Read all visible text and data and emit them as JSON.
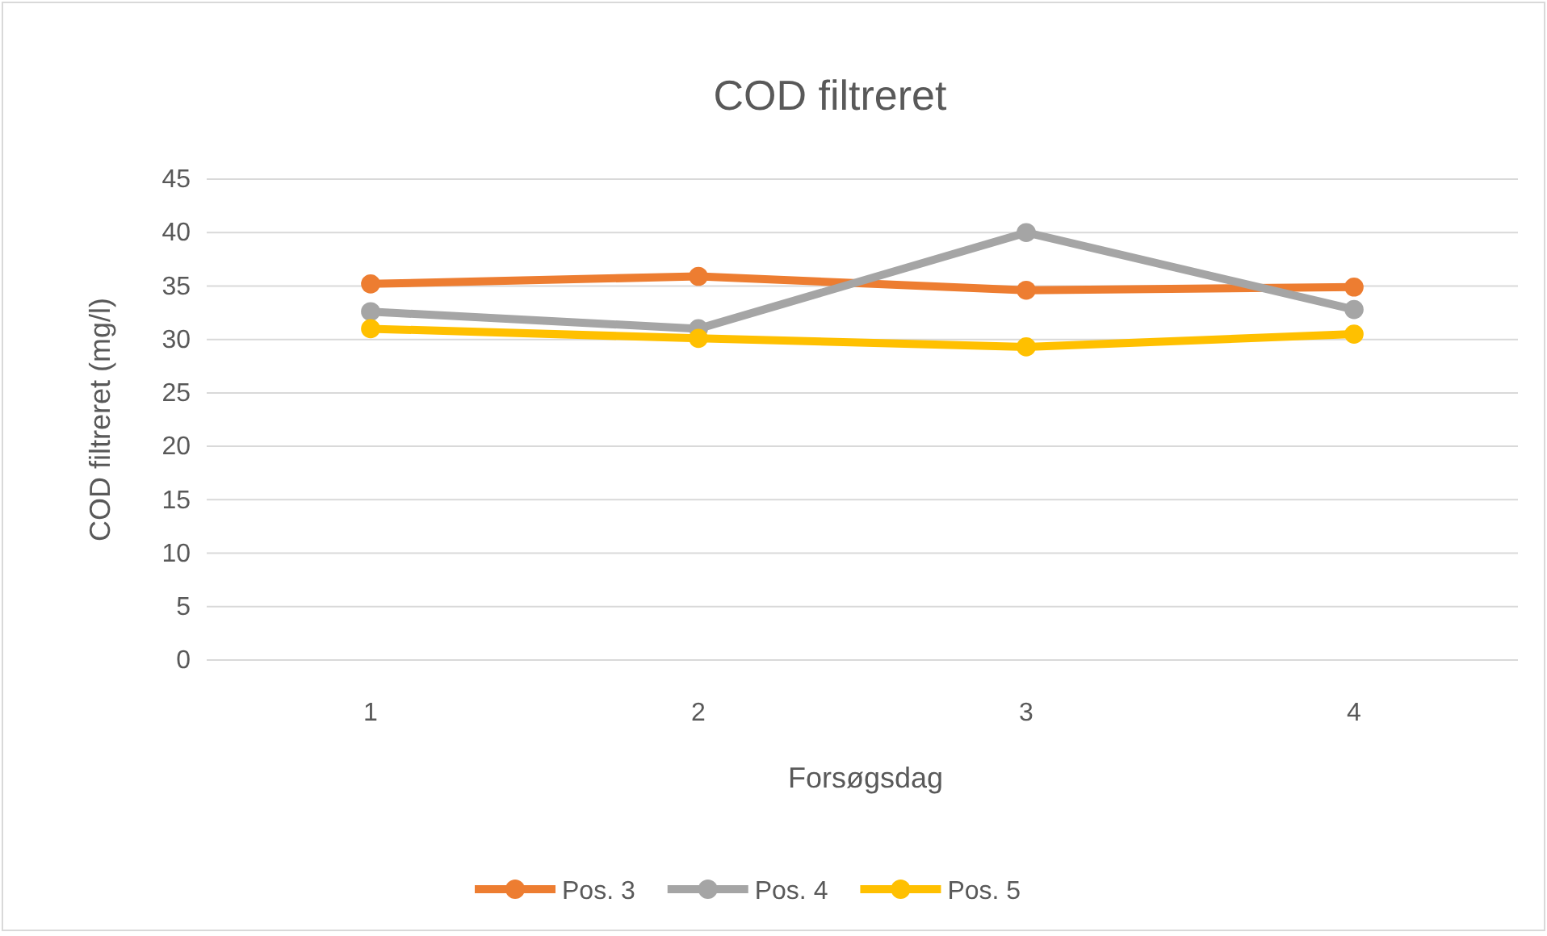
{
  "chart_data": {
    "type": "line",
    "title": "COD filtreret",
    "xlabel": "Forsøgsdag",
    "ylabel": "COD filtreret (mg/l)",
    "categories": [
      "1",
      "2",
      "3",
      "4"
    ],
    "series": [
      {
        "name": "Pos. 3",
        "color": "#ed7d31",
        "values": [
          35.2,
          35.9,
          34.6,
          34.9
        ]
      },
      {
        "name": "Pos. 4",
        "color": "#a5a5a5",
        "values": [
          32.6,
          31.0,
          40.0,
          32.8
        ]
      },
      {
        "name": "Pos. 5",
        "color": "#ffc000",
        "values": [
          31.0,
          30.1,
          29.3,
          30.5
        ]
      }
    ],
    "ylim": [
      0,
      45
    ],
    "yticks": [
      0,
      5,
      10,
      15,
      20,
      25,
      30,
      35,
      40,
      45
    ],
    "grid": "y",
    "legend": "bottom",
    "marker": "circle",
    "line_style": "solid"
  }
}
